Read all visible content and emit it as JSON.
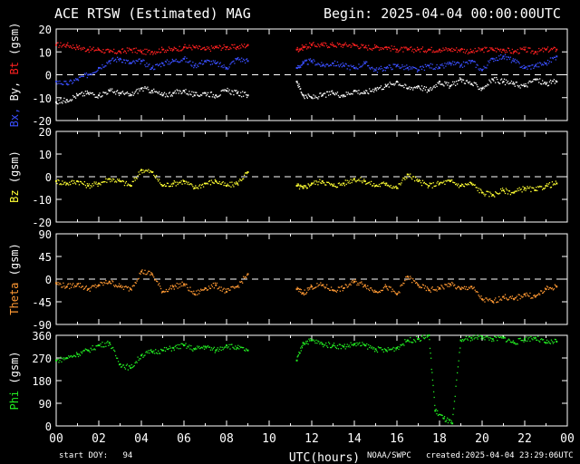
{
  "header": {
    "title": "ACE RTSW (Estimated) MAG",
    "begin": "Begin: 2025-04-04 00:00:00UTC"
  },
  "footer": {
    "start_doy": "start DOY:   94",
    "source": "NOAA/SWPC",
    "created": "created:2025-04-04 23:29:06UTC"
  },
  "colors": {
    "bx": "#3a4fff",
    "by": "#ffffff",
    "bt": "#ff2020",
    "bz": "#ffff33",
    "theta": "#ff9933",
    "phi": "#22ee22",
    "axis": "#ffffff"
  },
  "chart_data": [
    {
      "type": "scatter",
      "ylabel_parts": [
        {
          "text": "Bx,",
          "color_key": "bx"
        },
        {
          "text": "By,",
          "color_key": "by"
        },
        {
          "text": "Bt",
          "color_key": "bt"
        },
        {
          "text": "(gsm)",
          "color_key": "axis"
        }
      ],
      "ylim": [
        -20,
        20
      ],
      "yticks": [
        -20,
        -10,
        0,
        10,
        20
      ],
      "zero_line": 0,
      "series": [
        {
          "color_key": "bt",
          "x": [
            0,
            0.5,
            1,
            1.5,
            2,
            2.5,
            3,
            3.5,
            4,
            4.5,
            5,
            5.5,
            6,
            6.5,
            7,
            7.5,
            8,
            8.5,
            9,
            11.3,
            11.6,
            12,
            12.5,
            13,
            13.5,
            14,
            14.5,
            15,
            15.5,
            16,
            16.5,
            17,
            17.5,
            18,
            18.5,
            19,
            19.5,
            20,
            20.5,
            21,
            21.5,
            22,
            22.5,
            23,
            23.5
          ],
          "y": [
            13,
            13,
            12,
            11,
            11,
            10,
            10,
            11,
            10,
            10,
            11,
            11,
            12,
            12,
            11,
            12,
            12,
            12,
            13,
            11,
            12,
            13,
            13,
            13,
            13,
            13,
            12,
            12,
            12,
            11,
            11,
            11,
            11,
            11,
            11,
            11,
            10,
            11,
            11,
            11,
            10,
            11,
            10,
            11,
            11
          ]
        },
        {
          "color_key": "bx",
          "x": [
            0,
            0.5,
            1,
            1.5,
            2,
            2.5,
            3,
            3.5,
            4,
            4.5,
            5,
            5.5,
            6,
            6.5,
            7,
            7.5,
            8,
            8.5,
            9,
            11.3,
            11.6,
            12,
            12.5,
            13,
            13.5,
            14,
            14.5,
            15,
            15.5,
            16,
            16.5,
            17,
            17.5,
            18,
            18.5,
            19,
            19.5,
            20,
            20.5,
            21,
            21.5,
            22,
            22.5,
            23,
            23.5
          ],
          "y": [
            -3,
            -4,
            -2,
            0,
            3,
            6,
            7,
            5,
            6,
            3,
            5,
            6,
            7,
            4,
            6,
            5,
            3,
            7,
            6,
            3,
            5,
            6,
            4,
            5,
            4,
            3,
            5,
            2,
            3,
            4,
            3,
            2,
            4,
            3,
            5,
            4,
            6,
            2,
            7,
            8,
            6,
            3,
            4,
            5,
            8
          ]
        },
        {
          "color_key": "by",
          "x": [
            0,
            0.5,
            1,
            1.5,
            2,
            2.5,
            3,
            3.5,
            4,
            4.5,
            5,
            5.5,
            6,
            6.5,
            7,
            7.5,
            8,
            8.5,
            9,
            11.3,
            11.6,
            12,
            12.5,
            13,
            13.5,
            14,
            14.5,
            15,
            15.5,
            16,
            16.5,
            17,
            17.5,
            18,
            18.5,
            19,
            19.5,
            20,
            20.5,
            21,
            21.5,
            22,
            22.5,
            23,
            23.5
          ],
          "y": [
            -12,
            -11,
            -9,
            -8,
            -9,
            -7,
            -8,
            -9,
            -6,
            -7,
            -9,
            -8,
            -7,
            -9,
            -8,
            -9,
            -7,
            -8,
            -9,
            -3,
            -9,
            -10,
            -9,
            -8,
            -9,
            -7,
            -8,
            -6,
            -5,
            -3,
            -6,
            -5,
            -7,
            -3,
            -5,
            -2,
            -4,
            -6,
            -2,
            -3,
            -4,
            -5,
            -2,
            -4,
            -3
          ]
        }
      ]
    },
    {
      "type": "scatter",
      "ylabel_parts": [
        {
          "text": "Bz",
          "color_key": "bz"
        },
        {
          "text": "(gsm)",
          "color_key": "axis"
        }
      ],
      "ylim": [
        -20,
        20
      ],
      "yticks": [
        -20,
        -10,
        0,
        10,
        20
      ],
      "zero_line": 0,
      "series": [
        {
          "color_key": "bz",
          "x": [
            0,
            0.5,
            1,
            1.5,
            2,
            2.5,
            3,
            3.5,
            4,
            4.5,
            5,
            5.5,
            6,
            6.5,
            7,
            7.5,
            8,
            8.5,
            9,
            11.3,
            11.6,
            12,
            12.5,
            13,
            13.5,
            14,
            14.5,
            15,
            15.5,
            16,
            16.5,
            17,
            17.5,
            18,
            18.5,
            19,
            19.5,
            20,
            20.5,
            21,
            21.5,
            22,
            22.5,
            23,
            23.5
          ],
          "y": [
            -2,
            -3,
            -2,
            -4,
            -3,
            -1,
            -2,
            -4,
            3,
            2,
            -4,
            -3,
            -2,
            -5,
            -3,
            -2,
            -4,
            -3,
            2,
            -4,
            -5,
            -3,
            -2,
            -4,
            -3,
            -1,
            -2,
            -4,
            -3,
            -5,
            1,
            -2,
            -4,
            -3,
            -2,
            -4,
            -3,
            -7,
            -8,
            -6,
            -7,
            -5,
            -6,
            -4,
            -3
          ]
        }
      ]
    },
    {
      "type": "scatter",
      "ylabel_parts": [
        {
          "text": "Theta",
          "color_key": "theta"
        },
        {
          "text": "(gsm)",
          "color_key": "axis"
        }
      ],
      "ylim": [
        -90,
        90
      ],
      "yticks": [
        -90,
        -45,
        0,
        45,
        90
      ],
      "zero_line": 0,
      "series": [
        {
          "color_key": "theta",
          "x": [
            0,
            0.5,
            1,
            1.5,
            2,
            2.5,
            3,
            3.5,
            4,
            4.5,
            5,
            5.5,
            6,
            6.5,
            7,
            7.5,
            8,
            8.5,
            9,
            11.3,
            11.6,
            12,
            12.5,
            13,
            13.5,
            14,
            14.5,
            15,
            15.5,
            16,
            16.5,
            17,
            17.5,
            18,
            18.5,
            19,
            19.5,
            20,
            20.5,
            21,
            21.5,
            22,
            22.5,
            23,
            23.5
          ],
          "y": [
            -8,
            -15,
            -10,
            -20,
            -12,
            -5,
            -15,
            -20,
            15,
            10,
            -25,
            -15,
            -10,
            -30,
            -18,
            -12,
            -25,
            -15,
            10,
            -20,
            -28,
            -15,
            -12,
            -22,
            -18,
            -5,
            -12,
            -25,
            -15,
            -30,
            5,
            -12,
            -22,
            -18,
            -10,
            -20,
            -15,
            -40,
            -45,
            -35,
            -40,
            -30,
            -35,
            -20,
            -15
          ]
        }
      ]
    },
    {
      "type": "scatter",
      "ylabel_parts": [
        {
          "text": "Phi",
          "color_key": "phi"
        },
        {
          "text": "(gsm)",
          "color_key": "axis"
        }
      ],
      "ylim": [
        0,
        360
      ],
      "yticks": [
        0,
        90,
        180,
        270,
        360
      ],
      "series": [
        {
          "color_key": "phi",
          "x": [
            0,
            0.5,
            1,
            1.5,
            2,
            2.5,
            3,
            3.5,
            4,
            4.5,
            5,
            5.5,
            6,
            6.5,
            7,
            7.5,
            8,
            8.5,
            9,
            11.3,
            11.6,
            12,
            12.5,
            13,
            13.5,
            14,
            14.5,
            15,
            15.5,
            16,
            16.5,
            17,
            17.5,
            17.8,
            18.2,
            18.6,
            19,
            19.5,
            20,
            20.5,
            21,
            21.5,
            22,
            22.5,
            23,
            23.5
          ],
          "y": [
            260,
            270,
            285,
            300,
            320,
            330,
            245,
            230,
            280,
            295,
            300,
            310,
            320,
            305,
            315,
            300,
            320,
            310,
            300,
            260,
            330,
            340,
            325,
            320,
            315,
            325,
            320,
            305,
            300,
            310,
            340,
            345,
            360,
            60,
            30,
            10,
            340,
            350,
            355,
            345,
            350,
            330,
            345,
            350,
            330,
            335
          ]
        }
      ],
      "xlabel": "UTC(hours)",
      "xticks": [
        "00",
        "02",
        "04",
        "06",
        "08",
        "10",
        "12",
        "14",
        "16",
        "18",
        "20",
        "22",
        "00"
      ],
      "xlim": [
        0,
        24
      ]
    }
  ]
}
